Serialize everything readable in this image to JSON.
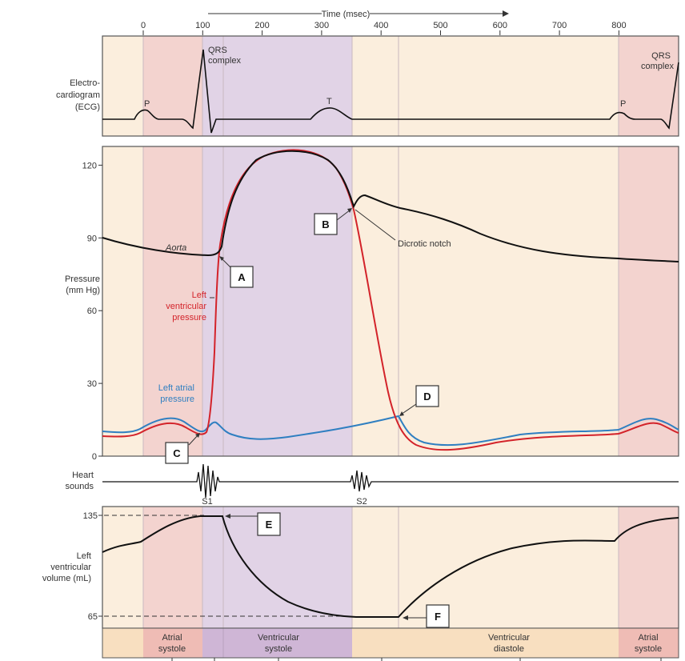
{
  "time_axis": {
    "label": "Time (msec)",
    "ticks": [
      "0",
      "100",
      "200",
      "300",
      "400",
      "500",
      "600",
      "700",
      "800"
    ]
  },
  "ecg": {
    "label_lines": [
      "Electro-",
      "cardiogram",
      "(ECG)"
    ],
    "p_label": "P",
    "t_label": "T",
    "qrs_lines": [
      "QRS",
      "complex"
    ]
  },
  "pressure": {
    "label_lines": [
      "Pressure",
      "(mm Hg)"
    ],
    "ticks": [
      "120",
      "90",
      "60",
      "30",
      "0"
    ],
    "aorta_label": "Aorta",
    "lv_label_lines": [
      "Left",
      "ventricular",
      "pressure"
    ],
    "la_label_lines": [
      "Left atrial",
      "pressure"
    ],
    "dicrotic_label": "Dicrotic notch",
    "colors": {
      "aorta": "#111111",
      "left_ventricle": "#d3232a",
      "left_atrium": "#2f7fc1"
    }
  },
  "heart_sounds": {
    "label_lines": [
      "Heart",
      "sounds"
    ],
    "s1": "S1",
    "s2": "S2"
  },
  "volume": {
    "label_lines": [
      "Left",
      "ventricular",
      "volume (mL)"
    ],
    "ticks": [
      "135",
      "65"
    ]
  },
  "markers": [
    "A",
    "B",
    "C",
    "D",
    "E",
    "F"
  ],
  "phases": {
    "atrial_systole_lines": [
      "Atrial",
      "systole"
    ],
    "ventricular_systole_lines": [
      "Ventricular",
      "systole"
    ],
    "ventricular_diastole_lines": [
      "Ventricular",
      "diastole"
    ]
  },
  "band_colors": {
    "diastole": "#fbeedd",
    "atrial_systole": "#f3d3cf",
    "ventricular_systole": "#e1d3e6"
  }
}
